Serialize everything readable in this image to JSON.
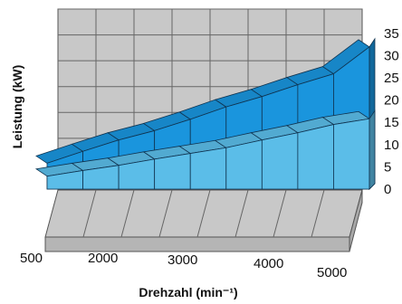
{
  "chart_data": {
    "type": "area",
    "style": "3d-stacked-bands",
    "x": [
      500,
      1000,
      1500,
      2000,
      2500,
      3000,
      3500,
      4000,
      4500,
      5000
    ],
    "series": [
      {
        "values": [
          2.5,
          3.6,
          4.6,
          5.8,
          6.9,
          8.0,
          9.5,
          10.9,
          12.5,
          13.6
        ],
        "color": "#5bbde8"
      },
      {
        "values": [
          5.0,
          7.3,
          9.5,
          11.3,
          13.5,
          15.9,
          17.9,
          20.2,
          22.3,
          27.5
        ],
        "color": "#1a95dd"
      }
    ],
    "xlabel": "Drehzahl (min⁻¹)",
    "ylabel": "Leistung (kW)",
    "y_ticks": [
      "0",
      "5",
      "10",
      "15",
      "20",
      "25",
      "30",
      "35"
    ],
    "x_tick_labels": [
      "500",
      "2000",
      "3000",
      "4000",
      "5000"
    ],
    "ylim": [
      0,
      35
    ],
    "grid": true
  }
}
